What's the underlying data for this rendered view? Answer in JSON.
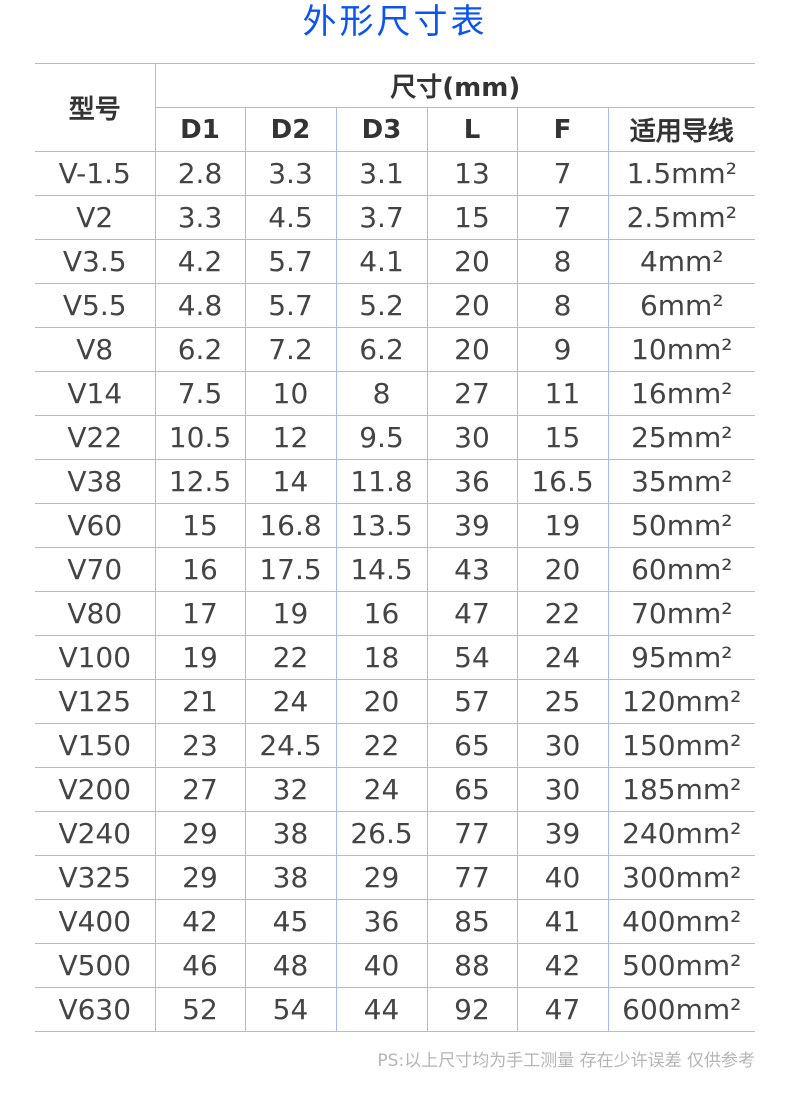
{
  "title": "外形尺寸表",
  "table": {
    "model_header": "型号",
    "size_header": "尺寸(mm)",
    "columns": [
      "D1",
      "D2",
      "D3",
      "L",
      "F",
      "适用导线"
    ],
    "rows": [
      [
        "V-1.5",
        "2.8",
        "3.3",
        "3.1",
        "13",
        "7",
        "1.5mm²"
      ],
      [
        "V2",
        "3.3",
        "4.5",
        "3.7",
        "15",
        "7",
        "2.5mm²"
      ],
      [
        "V3.5",
        "4.2",
        "5.7",
        "4.1",
        "20",
        "8",
        "4mm²"
      ],
      [
        "V5.5",
        "4.8",
        "5.7",
        "5.2",
        "20",
        "8",
        "6mm²"
      ],
      [
        "V8",
        "6.2",
        "7.2",
        "6.2",
        "20",
        "9",
        "10mm²"
      ],
      [
        "V14",
        "7.5",
        "10",
        "8",
        "27",
        "11",
        "16mm²"
      ],
      [
        "V22",
        "10.5",
        "12",
        "9.5",
        "30",
        "15",
        "25mm²"
      ],
      [
        "V38",
        "12.5",
        "14",
        "11.8",
        "36",
        "16.5",
        "35mm²"
      ],
      [
        "V60",
        "15",
        "16.8",
        "13.5",
        "39",
        "19",
        "50mm²"
      ],
      [
        "V70",
        "16",
        "17.5",
        "14.5",
        "43",
        "20",
        "60mm²"
      ],
      [
        "V80",
        "17",
        "19",
        "16",
        "47",
        "22",
        "70mm²"
      ],
      [
        "V100",
        "19",
        "22",
        "18",
        "54",
        "24",
        "95mm²"
      ],
      [
        "V125",
        "21",
        "24",
        "20",
        "57",
        "25",
        "120mm²"
      ],
      [
        "V150",
        "23",
        "24.5",
        "22",
        "65",
        "30",
        "150mm²"
      ],
      [
        "V200",
        "27",
        "32",
        "24",
        "65",
        "30",
        "185mm²"
      ],
      [
        "V240",
        "29",
        "38",
        "26.5",
        "77",
        "39",
        "240mm²"
      ],
      [
        "V325",
        "29",
        "38",
        "29",
        "77",
        "40",
        "300mm²"
      ],
      [
        "V400",
        "42",
        "45",
        "36",
        "85",
        "41",
        "400mm²"
      ],
      [
        "V500",
        "46",
        "48",
        "40",
        "88",
        "42",
        "500mm²"
      ],
      [
        "V630",
        "52",
        "54",
        "44",
        "92",
        "47",
        "600mm²"
      ]
    ]
  },
  "footnote": "PS:以上尺寸均为手工测量 存在少许误差 仅供参考",
  "colors": {
    "title": "#0a55f0",
    "border": "#a9b9f2",
    "text": "#444444",
    "footnote": "#b5b5b5"
  }
}
